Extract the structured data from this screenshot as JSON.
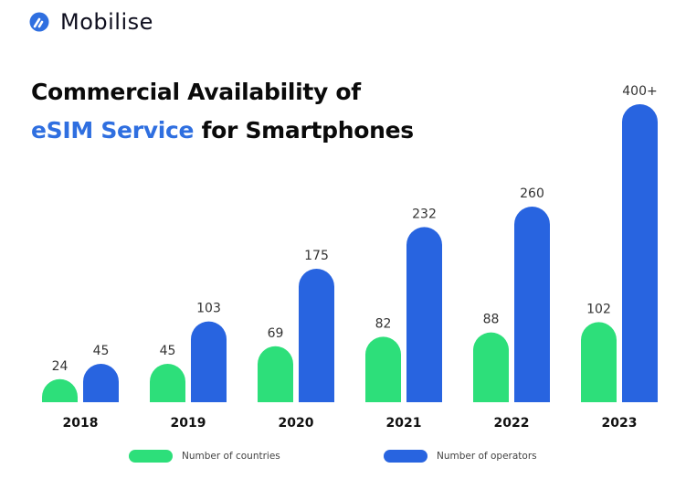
{
  "brand": {
    "name": "Mobilise",
    "logo_icon": "mobilise-logo-icon",
    "logo_color": "#2f6fe0"
  },
  "title": {
    "line1": "Commercial Availability of",
    "highlight": "eSIM Service",
    "line2_rest": " for Smartphones",
    "highlight_color": "#2f6fe0"
  },
  "chart_data": {
    "type": "bar",
    "title": "Commercial Availability of eSIM Service for Smartphones",
    "xlabel": "",
    "ylabel": "",
    "grid": false,
    "legend_position": "bottom",
    "categories": [
      "2018",
      "2019",
      "2020",
      "2021",
      "2022",
      "2023"
    ],
    "series": [
      {
        "name": "Number of countries",
        "color": "#2ddf7a",
        "values": [
          24,
          45,
          69,
          82,
          88,
          102
        ],
        "labels": [
          "24",
          "45",
          "69",
          "82",
          "88",
          "102"
        ]
      },
      {
        "name": "Number of operators",
        "color": "#2864e0",
        "values": [
          45,
          103,
          175,
          232,
          260,
          400
        ],
        "labels": [
          "45",
          "103",
          "175",
          "232",
          "260",
          "400+"
        ]
      }
    ],
    "ylim": [
      0,
      400
    ]
  }
}
